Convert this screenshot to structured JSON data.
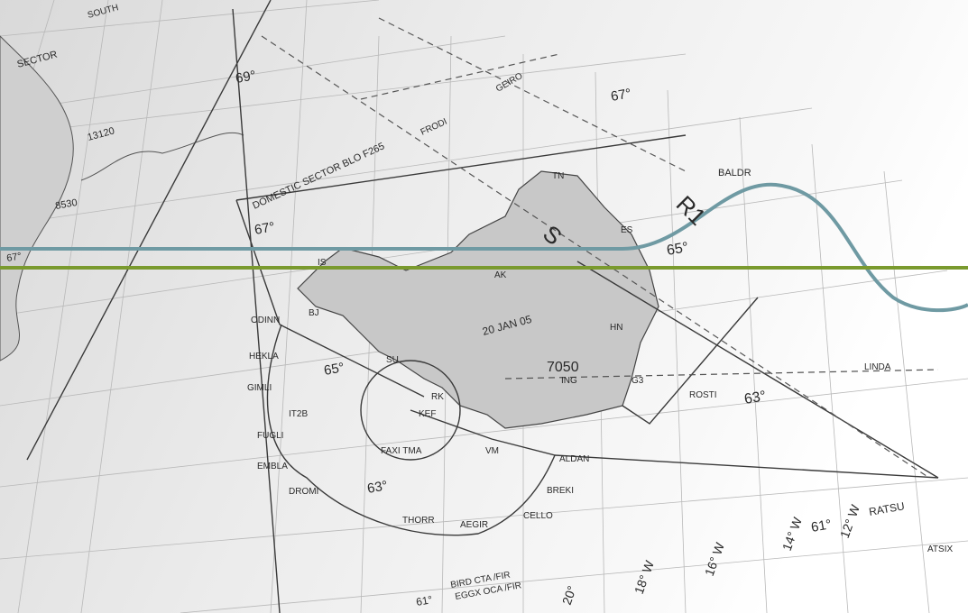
{
  "map": {
    "labels": [
      "SECTOR",
      "SOUTH",
      "69°",
      "13120",
      "8530",
      "67°",
      "DOMESTIC SECTOR BLO F265",
      "67°",
      "FRODI",
      "GEIRO",
      "67°",
      "BALDR",
      "R1",
      "S",
      "TN",
      "ES",
      "65°",
      "IS",
      "AK",
      "BJ",
      "ODINN",
      "HEKLA",
      "GIMLI",
      "IT2B",
      "FUGLI",
      "EMBLA",
      "DROMI",
      "65°",
      "SU",
      "RK",
      "KEF",
      "FAXI TMA",
      "VM",
      "20 JAN 05",
      "7050",
      "ING",
      "G3",
      "HN",
      "ROSTI",
      "63°",
      "LINDA",
      "ALDAN",
      "BREKI",
      "CELLO",
      "AEGIR",
      "THORR",
      "63°",
      "61°",
      "12° W",
      "14° W",
      "16° W",
      "18° W",
      "20°",
      "RATSU",
      "ATSIX",
      "BIRD CTA /FIR",
      "EGGX OCA /FIR",
      "61°"
    ]
  }
}
